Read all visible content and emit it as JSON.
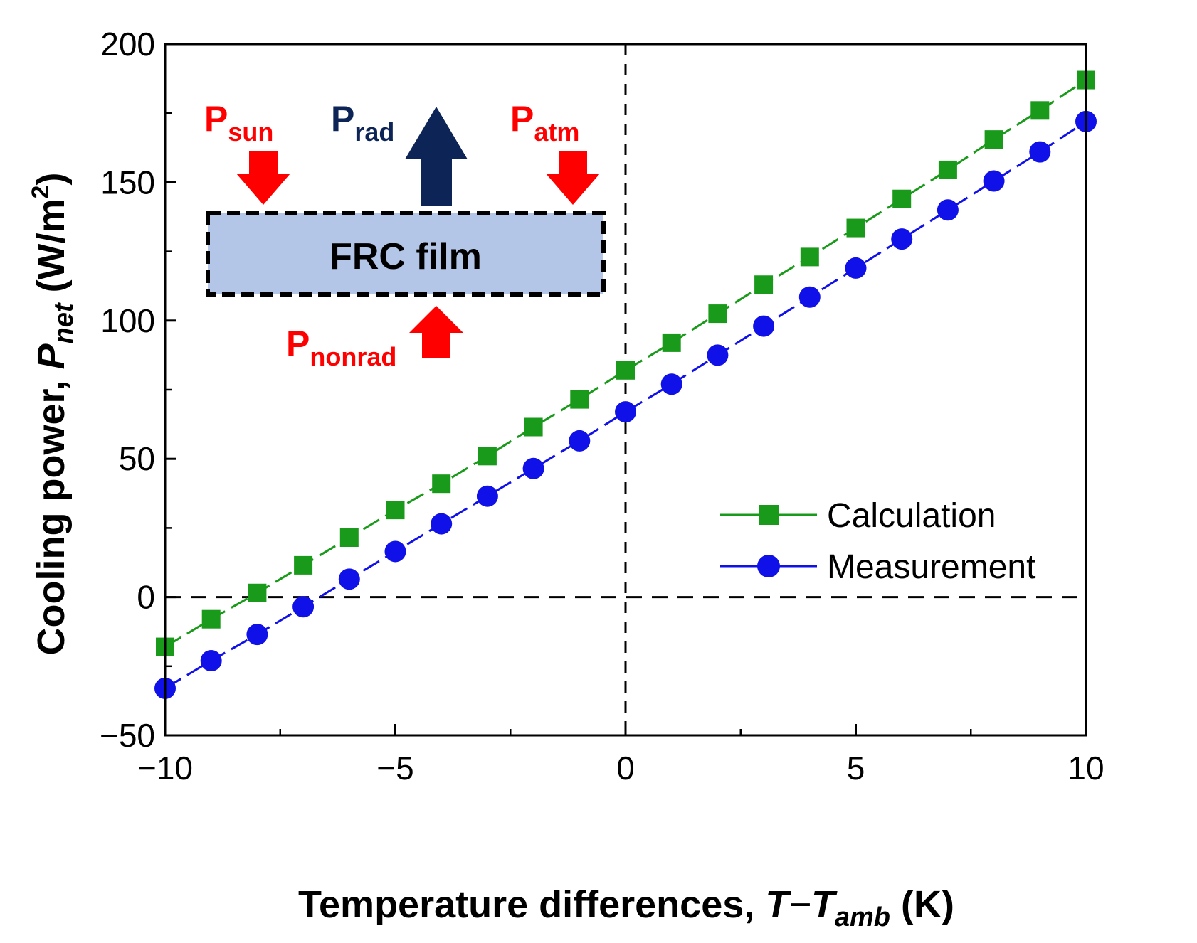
{
  "chart_data": {
    "type": "line",
    "xlabel": {
      "text": "Temperature differences, ",
      "var": "T",
      "minus": "−",
      "var2": "T",
      "sub": "amb",
      "unit": " (K)"
    },
    "ylabel": {
      "text": "Cooling power, ",
      "var": "P",
      "sub": "net",
      "unit_open": " (W/m",
      "sup": "2",
      "unit_close": ")"
    },
    "xlim": [
      -10,
      10
    ],
    "ylim": [
      -50,
      200
    ],
    "x_ticks": [
      {
        "value": -10,
        "label": "−10"
      },
      {
        "value": -5,
        "label": "−5"
      },
      {
        "value": 0,
        "label": "0"
      },
      {
        "value": 5,
        "label": "5"
      },
      {
        "value": 10,
        "label": "10"
      }
    ],
    "y_ticks": [
      {
        "value": -50,
        "label": "−50"
      },
      {
        "value": 0,
        "label": "0"
      },
      {
        "value": 50,
        "label": "50"
      },
      {
        "value": 100,
        "label": "100"
      },
      {
        "value": 150,
        "label": "150"
      },
      {
        "value": 200,
        "label": "200"
      }
    ],
    "x_minor_ticks": [
      -7.5,
      -2.5,
      2.5,
      7.5
    ],
    "y_minor_ticks": [
      -25,
      25,
      75,
      125,
      175
    ],
    "reference_lines": {
      "horizontal": 0,
      "vertical": 0
    },
    "x": [
      -10,
      -9,
      -8,
      -7,
      -6,
      -5,
      -4,
      -3,
      -2,
      -1,
      0,
      1,
      2,
      3,
      4,
      5,
      6,
      7,
      8,
      9,
      10
    ],
    "series": [
      {
        "name": "Calculation",
        "marker": "square",
        "color": "#1a9a1a",
        "values": [
          -18,
          -8,
          1.5,
          11.5,
          21.5,
          31.5,
          41,
          51,
          61.5,
          71.5,
          82,
          92,
          102.5,
          113,
          123,
          133.5,
          144,
          154.5,
          165.5,
          176,
          187
        ]
      },
      {
        "name": "Measurement",
        "marker": "circle",
        "color": "#1010e8",
        "values": [
          -33,
          -23,
          -13.5,
          -3.5,
          6.5,
          16.5,
          26.5,
          36.5,
          46.5,
          56.5,
          67,
          77,
          87.5,
          98,
          108.5,
          119,
          129.5,
          140,
          150.5,
          161,
          172
        ]
      }
    ],
    "legend_position": "middle-right",
    "inset": {
      "film_label": "FRC film",
      "film_fill": "#b4c6e7",
      "labels": {
        "sun": {
          "base": "P",
          "sub": "sun",
          "color": "#ff0000"
        },
        "rad": {
          "base": "P",
          "sub": "rad",
          "color": "#0d2457"
        },
        "atm": {
          "base": "P",
          "sub": "atm",
          "color": "#ff0000"
        },
        "nonrad": {
          "base": "P",
          "sub": "nonrad",
          "color": "#ff0000"
        }
      }
    }
  }
}
